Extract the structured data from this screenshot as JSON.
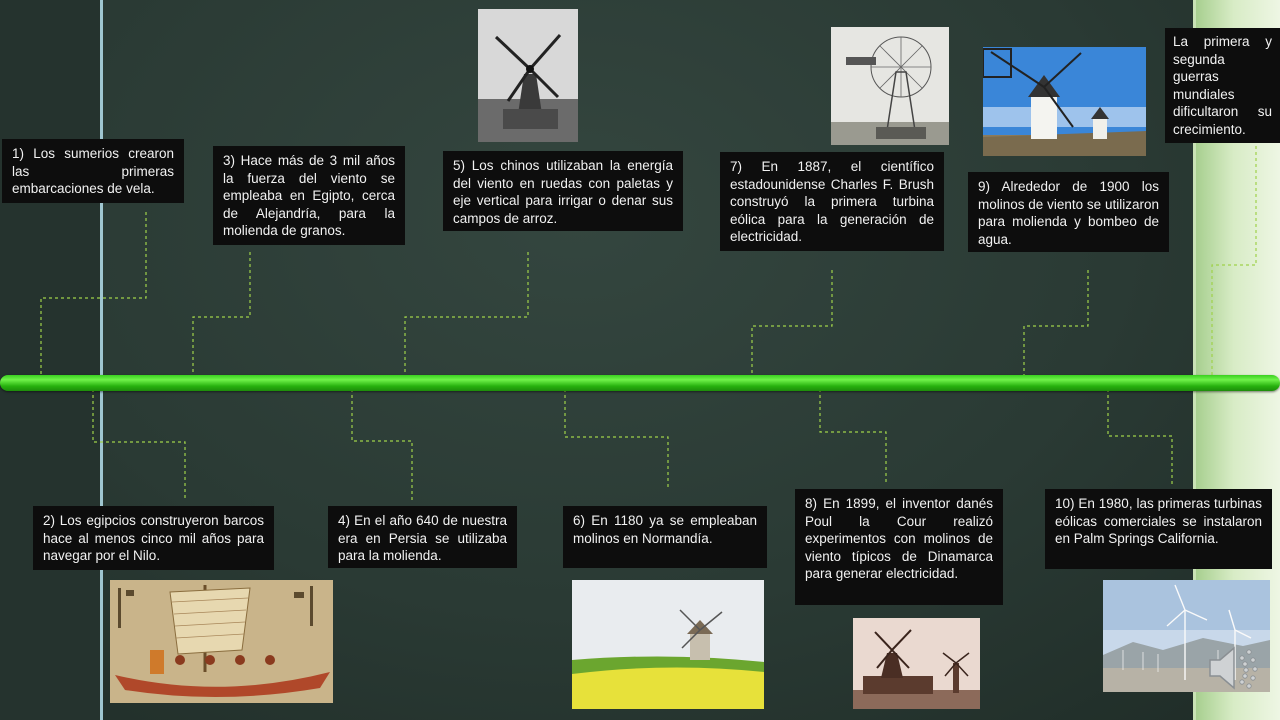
{
  "events": [
    {
      "text": "1) Los sumerios crearon las primeras embarcaciones de vela."
    },
    {
      "text": "2) Los egipcios construyeron barcos hace al menos cinco mil años para navegar por el Nilo."
    },
    {
      "text": "3) Hace más de 3 mil años la fuerza del viento se empleaba en Egipto, cerca de Alejandría, para la molienda de granos."
    },
    {
      "text": "4) En el año 640 de nuestra era en Persia se utilizaba para la molienda."
    },
    {
      "text": "5) Los chinos utilizaban la energía del viento en ruedas con paletas y eje vertical para irrigar o denar sus campos de arroz."
    },
    {
      "text": "6) En 1180 ya se empleaban molinos en Normandía."
    },
    {
      "text": "7) En 1887, el científico estadounidense Charles F. Brush construyó la primera turbina eólica para la generación de electricidad."
    },
    {
      "text": "8) En 1899, el inventor danés Poul la Cour realizó experimentos con molinos de viento típicos de Dinamarca para generar electricidad."
    },
    {
      "text": "9) Alrededor de 1900 los molinos de viento se utilizaron para molienda y bombeo de agua."
    },
    {
      "text": "10) En 1980, las primeras turbinas eólicas comerciales se instalaron en Palm Springs California."
    },
    {
      "text": "La primera y segunda guerras mundiales dificultaron su crecimiento."
    }
  ],
  "colors": {
    "timeline": "#3ad01f",
    "connector": "#9fd14a",
    "box_background": "#0d0d0d",
    "box_text": "#f2f2f2"
  },
  "icons": {
    "audio": "speaker-icon"
  }
}
